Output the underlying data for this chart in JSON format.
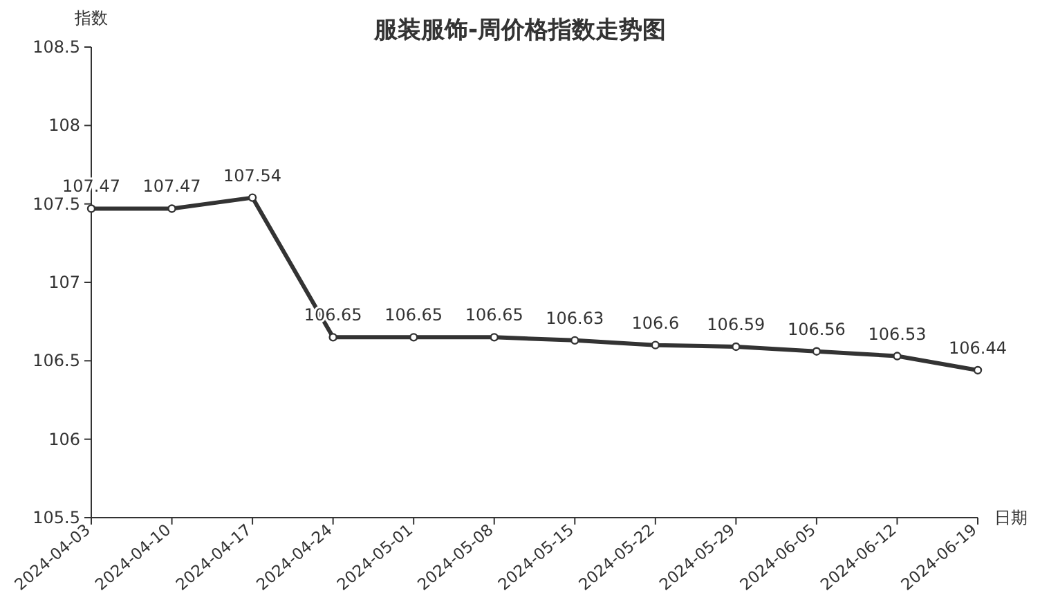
{
  "chart_data": {
    "type": "line",
    "title": "服装服饰-周价格指数走势图",
    "ylabel": "指数",
    "xlabel": "日期",
    "categories": [
      "2024-04-03",
      "2024-04-10",
      "2024-04-17",
      "2024-04-24",
      "2024-05-01",
      "2024-05-08",
      "2024-05-15",
      "2024-05-22",
      "2024-05-29",
      "2024-06-05",
      "2024-06-12",
      "2024-06-19"
    ],
    "series": [
      {
        "color": "#333333",
        "values": [
          107.47,
          107.47,
          107.54,
          106.65,
          106.65,
          106.65,
          106.63,
          106.6,
          106.59,
          106.56,
          106.53,
          106.44
        ]
      }
    ],
    "ylim": [
      105.5,
      108.5
    ],
    "yticks": [
      105.5,
      106,
      106.5,
      107,
      107.5,
      108,
      108.5
    ],
    "data_labels": true,
    "marker": "circle",
    "line_style": "solid",
    "grid": false
  }
}
